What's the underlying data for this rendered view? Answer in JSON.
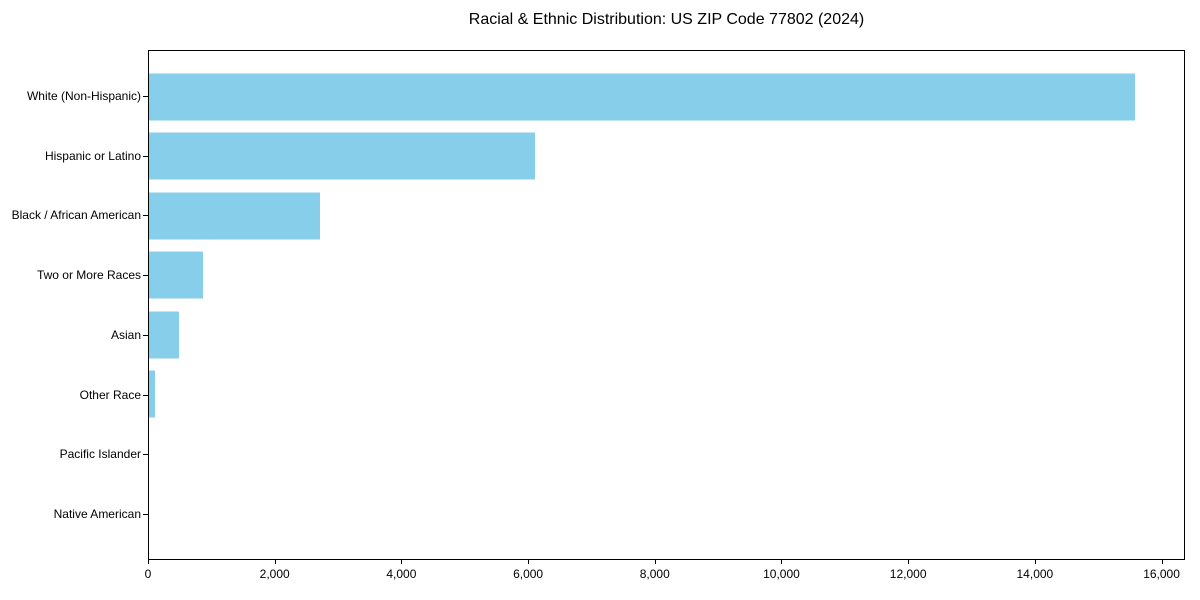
{
  "title": "Racial & Ethnic Distribution: US ZIP Code 77802 (2024)",
  "colors": {
    "bar": "#87CEEB",
    "text": "#000000",
    "spine": "#000000",
    "background": "#FFFFFF"
  },
  "chart_data": {
    "type": "bar",
    "orientation": "horizontal",
    "title": "Racial & Ethnic Distribution: US ZIP Code 77802 (2024)",
    "categories": [
      "White (Non-Hispanic)",
      "Hispanic or Latino",
      "Black / African American",
      "Two or More Races",
      "Asian",
      "Other Race",
      "Pacific Islander",
      "Native American"
    ],
    "values": [
      15600,
      6100,
      2700,
      850,
      470,
      100,
      0,
      0
    ],
    "xlabel": "",
    "ylabel": "",
    "xlim": [
      0,
      16370
    ],
    "xticks": [
      0,
      2000,
      4000,
      6000,
      8000,
      10000,
      12000,
      14000,
      16000
    ],
    "xtick_labels": [
      "0",
      "2,000",
      "4,000",
      "6,000",
      "8,000",
      "10,000",
      "12,000",
      "14,000",
      "16,000"
    ],
    "grid": false,
    "legend": null,
    "bar_color": "#87CEEB"
  }
}
